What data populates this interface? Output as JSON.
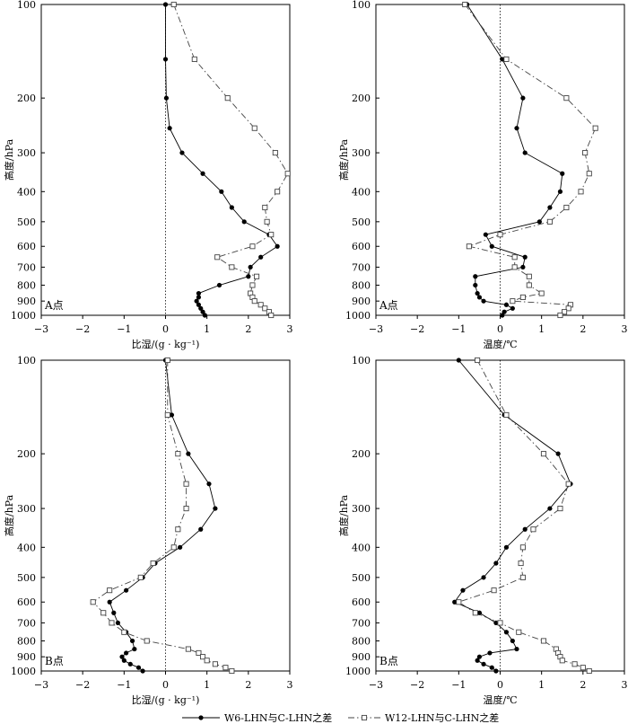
{
  "chart_data": [
    {
      "type": "line",
      "panel_label": "A点",
      "xlabel": "比湿/(g · kg⁻¹)",
      "ylabel": "高度/hPa",
      "xlim": [
        -3,
        3
      ],
      "xticks": [
        -3,
        -2,
        -1,
        0,
        1,
        2,
        3
      ],
      "y_scale": "log",
      "ylim": [
        1000,
        100
      ],
      "yticks": [
        100,
        200,
        300,
        400,
        500,
        600,
        700,
        800,
        900,
        1000
      ],
      "series": [
        {
          "name": "W6-LHN与C-LHN之差",
          "points": [
            [
              0.0,
              100
            ],
            [
              0.0,
              150
            ],
            [
              0.02,
              200
            ],
            [
              0.1,
              250
            ],
            [
              0.4,
              300
            ],
            [
              0.9,
              350
            ],
            [
              1.35,
              400
            ],
            [
              1.6,
              450
            ],
            [
              1.9,
              500
            ],
            [
              2.5,
              550
            ],
            [
              2.7,
              600
            ],
            [
              2.3,
              650
            ],
            [
              2.05,
              700
            ],
            [
              2.0,
              750
            ],
            [
              1.3,
              800
            ],
            [
              0.8,
              850
            ],
            [
              0.8,
              875
            ],
            [
              0.75,
              900
            ],
            [
              0.8,
              925
            ],
            [
              0.85,
              950
            ],
            [
              0.9,
              975
            ],
            [
              0.95,
              1000
            ]
          ]
        },
        {
          "name": "W12-LHN与C-LHN之差",
          "points": [
            [
              0.2,
              100
            ],
            [
              0.7,
              150
            ],
            [
              1.5,
              200
            ],
            [
              2.15,
              250
            ],
            [
              2.65,
              300
            ],
            [
              2.95,
              350
            ],
            [
              2.7,
              400
            ],
            [
              2.4,
              450
            ],
            [
              2.45,
              500
            ],
            [
              2.55,
              550
            ],
            [
              2.1,
              600
            ],
            [
              1.25,
              650
            ],
            [
              1.6,
              700
            ],
            [
              2.2,
              750
            ],
            [
              2.1,
              800
            ],
            [
              2.05,
              850
            ],
            [
              2.1,
              875
            ],
            [
              2.15,
              900
            ],
            [
              2.3,
              925
            ],
            [
              2.4,
              950
            ],
            [
              2.5,
              975
            ],
            [
              2.55,
              1000
            ]
          ]
        }
      ]
    },
    {
      "type": "line",
      "panel_label": "A点",
      "xlabel": "温度/℃",
      "ylabel": "高度/hPa",
      "xlim": [
        -3,
        3
      ],
      "xticks": [
        -3,
        -2,
        -1,
        0,
        1,
        2,
        3
      ],
      "y_scale": "log",
      "ylim": [
        1000,
        100
      ],
      "yticks": [
        100,
        200,
        300,
        400,
        500,
        600,
        700,
        800,
        900,
        1000
      ],
      "series": [
        {
          "name": "W6-LHN与C-LHN之差",
          "points": [
            [
              -0.8,
              100
            ],
            [
              0.05,
              150
            ],
            [
              0.55,
              200
            ],
            [
              0.4,
              250
            ],
            [
              0.6,
              300
            ],
            [
              1.5,
              350
            ],
            [
              1.45,
              400
            ],
            [
              1.2,
              450
            ],
            [
              0.95,
              500
            ],
            [
              -0.35,
              550
            ],
            [
              -0.2,
              600
            ],
            [
              0.6,
              650
            ],
            [
              0.55,
              700
            ],
            [
              -0.6,
              750
            ],
            [
              -0.6,
              800
            ],
            [
              -0.55,
              850
            ],
            [
              -0.5,
              875
            ],
            [
              -0.4,
              900
            ],
            [
              0.15,
              925
            ],
            [
              0.3,
              950
            ],
            [
              0.1,
              975
            ],
            [
              0.05,
              1000
            ]
          ]
        },
        {
          "name": "W12-LHN与C-LHN之差",
          "points": [
            [
              -0.85,
              100
            ],
            [
              0.15,
              150
            ],
            [
              1.6,
              200
            ],
            [
              2.3,
              250
            ],
            [
              2.05,
              300
            ],
            [
              2.15,
              350
            ],
            [
              1.95,
              400
            ],
            [
              1.6,
              450
            ],
            [
              1.2,
              500
            ],
            [
              0.0,
              550
            ],
            [
              -0.75,
              600
            ],
            [
              0.35,
              650
            ],
            [
              0.35,
              700
            ],
            [
              0.7,
              750
            ],
            [
              0.7,
              800
            ],
            [
              1.0,
              850
            ],
            [
              0.55,
              875
            ],
            [
              0.3,
              900
            ],
            [
              1.7,
              925
            ],
            [
              1.65,
              950
            ],
            [
              1.55,
              975
            ],
            [
              1.45,
              1000
            ]
          ]
        }
      ]
    },
    {
      "type": "line",
      "panel_label": "B点",
      "xlabel": "比湿/(g · kg⁻¹)",
      "ylabel": "高度/hPa",
      "xlim": [
        -3,
        3
      ],
      "xticks": [
        -3,
        -2,
        -1,
        0,
        1,
        2,
        3
      ],
      "y_scale": "log",
      "ylim": [
        1000,
        100
      ],
      "yticks": [
        100,
        200,
        300,
        400,
        500,
        600,
        700,
        800,
        900,
        1000
      ],
      "series": [
        {
          "name": "W6-LHN与C-LHN之差",
          "points": [
            [
              0.0,
              100
            ],
            [
              0.15,
              150
            ],
            [
              0.55,
              200
            ],
            [
              1.05,
              250
            ],
            [
              1.2,
              300
            ],
            [
              0.85,
              350
            ],
            [
              0.35,
              400
            ],
            [
              -0.25,
              450
            ],
            [
              -0.55,
              500
            ],
            [
              -0.95,
              550
            ],
            [
              -1.35,
              600
            ],
            [
              -1.25,
              650
            ],
            [
              -1.15,
              700
            ],
            [
              -0.95,
              750
            ],
            [
              -0.8,
              800
            ],
            [
              -0.75,
              850
            ],
            [
              -0.95,
              875
            ],
            [
              -1.05,
              900
            ],
            [
              -1.0,
              925
            ],
            [
              -0.85,
              950
            ],
            [
              -0.65,
              975
            ],
            [
              -0.55,
              1000
            ]
          ]
        },
        {
          "name": "W12-LHN与C-LHN之差",
          "points": [
            [
              0.05,
              100
            ],
            [
              0.05,
              150
            ],
            [
              0.3,
              200
            ],
            [
              0.5,
              250
            ],
            [
              0.5,
              300
            ],
            [
              0.3,
              350
            ],
            [
              0.2,
              400
            ],
            [
              -0.3,
              450
            ],
            [
              -0.6,
              500
            ],
            [
              -1.35,
              550
            ],
            [
              -1.75,
              600
            ],
            [
              -1.5,
              650
            ],
            [
              -1.3,
              700
            ],
            [
              -1.0,
              750
            ],
            [
              -0.45,
              800
            ],
            [
              0.55,
              850
            ],
            [
              0.8,
              875
            ],
            [
              0.9,
              900
            ],
            [
              1.0,
              925
            ],
            [
              1.2,
              950
            ],
            [
              1.45,
              975
            ],
            [
              1.6,
              1000
            ]
          ]
        }
      ]
    },
    {
      "type": "line",
      "panel_label": "B点",
      "xlabel": "温度/℃",
      "ylabel": "高度/hPa",
      "xlim": [
        -3,
        3
      ],
      "xticks": [
        -3,
        -2,
        -1,
        0,
        1,
        2,
        3
      ],
      "y_scale": "log",
      "ylim": [
        1000,
        100
      ],
      "yticks": [
        100,
        200,
        300,
        400,
        500,
        600,
        700,
        800,
        900,
        1000
      ],
      "series": [
        {
          "name": "W6-LHN与C-LHN之差",
          "points": [
            [
              -1.0,
              100
            ],
            [
              0.1,
              150
            ],
            [
              1.4,
              200
            ],
            [
              1.7,
              250
            ],
            [
              1.2,
              300
            ],
            [
              0.6,
              350
            ],
            [
              0.15,
              400
            ],
            [
              -0.1,
              450
            ],
            [
              -0.4,
              500
            ],
            [
              -0.9,
              550
            ],
            [
              -1.1,
              600
            ],
            [
              -0.5,
              650
            ],
            [
              -0.1,
              700
            ],
            [
              0.15,
              750
            ],
            [
              0.3,
              800
            ],
            [
              0.4,
              850
            ],
            [
              -0.25,
              875
            ],
            [
              -0.5,
              900
            ],
            [
              -0.55,
              925
            ],
            [
              -0.4,
              950
            ],
            [
              -0.2,
              975
            ],
            [
              -0.1,
              1000
            ]
          ]
        },
        {
          "name": "W12-LHN与C-LHN之差",
          "points": [
            [
              -0.55,
              100
            ],
            [
              0.15,
              150
            ],
            [
              1.05,
              200
            ],
            [
              1.65,
              250
            ],
            [
              1.45,
              300
            ],
            [
              0.8,
              350
            ],
            [
              0.55,
              400
            ],
            [
              0.5,
              450
            ],
            [
              0.55,
              500
            ],
            [
              -0.15,
              550
            ],
            [
              -1.0,
              600
            ],
            [
              -0.6,
              650
            ],
            [
              0.0,
              700
            ],
            [
              0.45,
              750
            ],
            [
              1.05,
              800
            ],
            [
              1.35,
              850
            ],
            [
              1.4,
              875
            ],
            [
              1.45,
              900
            ],
            [
              1.5,
              925
            ],
            [
              1.8,
              950
            ],
            [
              2.0,
              975
            ],
            [
              2.15,
              1000
            ]
          ]
        }
      ]
    }
  ],
  "legend": {
    "placement": "bottom-center",
    "items": [
      {
        "label": "W6-LHN与C-LHN之差",
        "marker": "filled-circle",
        "line": "solid"
      },
      {
        "label": "W12-LHN与C-LHN之差",
        "marker": "open-square",
        "line": "dashed"
      }
    ]
  }
}
